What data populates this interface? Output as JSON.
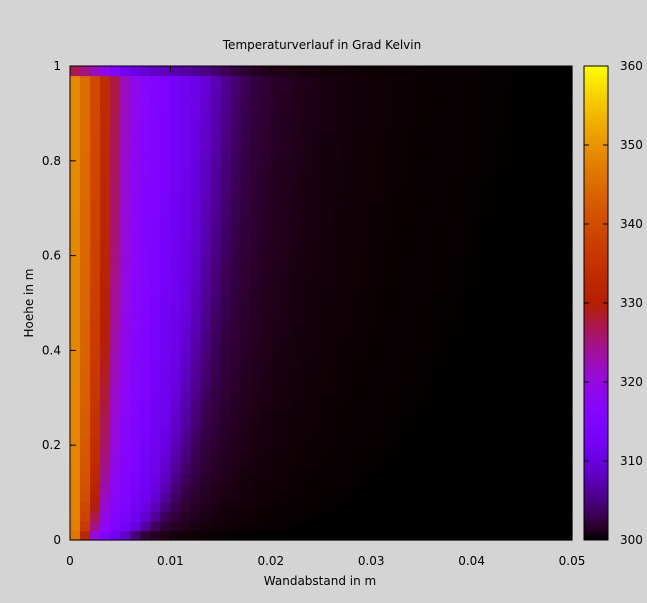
{
  "chart_data": {
    "type": "heatmap",
    "title": "Temperaturverlauf in Grad Kelvin",
    "xlabel": "Wandabstand in m",
    "ylabel": "Hoehe in m",
    "xlim": [
      0,
      0.05
    ],
    "ylim": [
      0,
      1
    ],
    "xticks": [
      {
        "value": 0,
        "label": "0"
      },
      {
        "value": 0.01,
        "label": "0.01"
      },
      {
        "value": 0.02,
        "label": "0.02"
      },
      {
        "value": 0.03,
        "label": "0.03"
      },
      {
        "value": 0.04,
        "label": "0.04"
      },
      {
        "value": 0.05,
        "label": "0.05"
      }
    ],
    "yticks": [
      {
        "value": 0,
        "label": "0"
      },
      {
        "value": 0.2,
        "label": "0.2"
      },
      {
        "value": 0.4,
        "label": "0.4"
      },
      {
        "value": 0.6,
        "label": "0.6"
      },
      {
        "value": 0.8,
        "label": "0.8"
      },
      {
        "value": 1,
        "label": "1"
      }
    ],
    "colorbar": {
      "range": [
        300,
        360
      ],
      "palette": "gnuplot-hot (black-purple-red-orange-yellow)",
      "ticks": [
        {
          "value": 300,
          "label": "300"
        },
        {
          "value": 310,
          "label": "310"
        },
        {
          "value": 320,
          "label": "320"
        },
        {
          "value": 330,
          "label": "330"
        },
        {
          "value": 340,
          "label": "340"
        },
        {
          "value": 350,
          "label": "350"
        },
        {
          "value": 360,
          "label": "360"
        }
      ]
    },
    "grid": false,
    "wall_temperature": 350,
    "ambient_temperature": 300,
    "x_cells": 50,
    "y_cells": 50,
    "profile": {
      "x": [
        0,
        0.001,
        0.002,
        0.003,
        0.004,
        0.005,
        0.006,
        0.007,
        0.008,
        0.009,
        0.01,
        0.011,
        0.012,
        0.013,
        0.014,
        0.015,
        0.016,
        0.018,
        0.02,
        0.022,
        0.025,
        0.03,
        0.04,
        0.05
      ],
      "temperature": [
        350,
        347,
        341,
        334,
        327,
        321,
        318,
        316,
        315,
        313,
        312,
        311,
        309,
        307,
        305,
        303.5,
        302.5,
        301.5,
        301,
        300.6,
        300.3,
        300.1,
        300,
        300
      ]
    }
  }
}
